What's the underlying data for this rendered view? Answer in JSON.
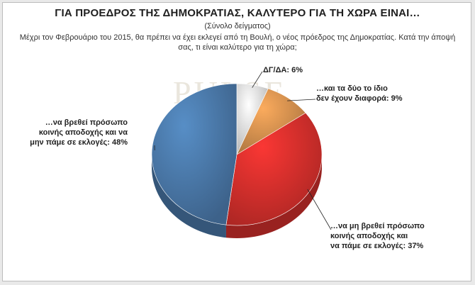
{
  "title": "ΓΙΑ ΠΡΟΕΔΡΟΣ ΤΗΣ ΔΗΜΟΚΡΑΤΙΑΣ, ΚΑΛΥΤΕΡΟ ΓΙΑ ΤΗ ΧΩΡΑ ΕΙΝΑΙ…",
  "subtitle": "(Σύνολο δείγματος)",
  "question_line1": "Μέχρι τον Φεβρουάριο του 2015, θα πρέπει να έχει εκλεγεί από τη Βουλή, ο νέος πρόεδρος της Δημοκρατίας. Κατά την άποψή",
  "question_line2": "σας, τι είναι καλύτερο για τη χώρα;",
  "watermark": "PULSE",
  "chart_data": {
    "type": "pie",
    "unit": "%",
    "slices": [
      {
        "label_lines": [
          "…να βρεθεί πρόσωπο",
          "κοινής αποδοχής και να",
          "μην πάμε σε εκλογές: 48%"
        ],
        "value": 48,
        "color": "#4a78a8"
      },
      {
        "label_lines": [
          "ΔΓ/ΔΑ: 6%"
        ],
        "value": 6,
        "color": "#e2e2e2"
      },
      {
        "label_lines": [
          "…και τα δύο το ίδιο",
          "δεν έχουν διαφορά: 9%"
        ],
        "value": 9,
        "color": "#d5914f"
      },
      {
        "label_lines": [
          "…να μη βρεθεί πρόσωπο",
          "κοινής αποδοχής και",
          "να πάμε σε εκλογές: 37%"
        ],
        "value": 37,
        "color": "#d42f2c"
      }
    ]
  }
}
